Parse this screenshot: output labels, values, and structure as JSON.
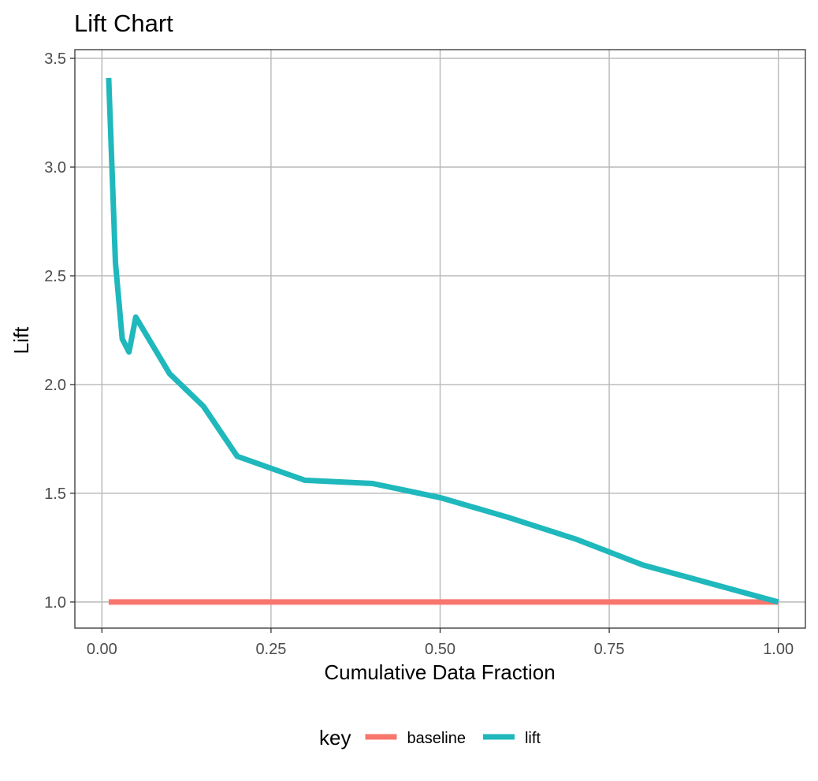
{
  "chart_data": {
    "type": "line",
    "title": "Lift Chart",
    "xlabel": "Cumulative Data Fraction",
    "ylabel": "Lift",
    "xlim": [
      -0.04,
      1.04
    ],
    "ylim": [
      0.88,
      3.54
    ],
    "x_ticks": [
      0.0,
      0.25,
      0.5,
      0.75,
      1.0
    ],
    "x_tick_labels": [
      "0.00",
      "0.25",
      "0.50",
      "0.75",
      "1.00"
    ],
    "y_ticks": [
      1.0,
      1.5,
      2.0,
      2.5,
      3.0,
      3.5
    ],
    "y_tick_labels": [
      "1.0",
      "1.5",
      "2.0",
      "2.5",
      "3.0",
      "3.5"
    ],
    "grid": true,
    "legend": {
      "title": "key",
      "position": "bottom"
    },
    "series": [
      {
        "name": "baseline",
        "color": "#F8766D",
        "x": [
          0.01,
          0.02,
          0.03,
          0.04,
          0.05,
          0.1,
          0.15,
          0.2,
          0.3,
          0.4,
          0.5,
          0.6,
          0.7,
          0.8,
          0.9,
          1.0
        ],
        "values": [
          1.0,
          1.0,
          1.0,
          1.0,
          1.0,
          1.0,
          1.0,
          1.0,
          1.0,
          1.0,
          1.0,
          1.0,
          1.0,
          1.0,
          1.0,
          1.0
        ]
      },
      {
        "name": "lift",
        "color": "#1FB8BC",
        "x": [
          0.01,
          0.02,
          0.03,
          0.04,
          0.05,
          0.1,
          0.15,
          0.2,
          0.3,
          0.4,
          0.5,
          0.6,
          0.7,
          0.8,
          0.9,
          1.0
        ],
        "values": [
          3.41,
          2.56,
          2.21,
          2.15,
          2.31,
          2.05,
          1.9,
          1.67,
          1.56,
          1.545,
          1.48,
          1.39,
          1.29,
          1.17,
          1.085,
          1.0
        ]
      }
    ]
  }
}
